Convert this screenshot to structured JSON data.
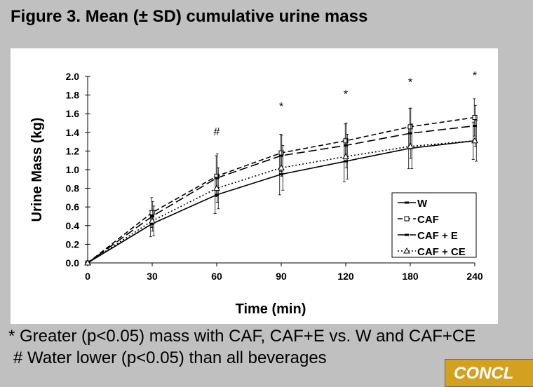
{
  "title": "Figure 3. Mean (± SD) cumulative urine mass",
  "footnotes": {
    "line1": "* Greater (p<0.05) mass with CAF, CAF+E vs. W and CAF+CE",
    "line2": "#  Water lower (p<0.05) than all beverages"
  },
  "conc_tab_label": "CONCL",
  "chart_data": {
    "type": "line",
    "title": "",
    "xlabel": "Time (min)",
    "ylabel": "Urine Mass (kg)",
    "ylim": [
      0,
      2.0
    ],
    "yticks": [
      "0.0",
      "0.2",
      "0.4",
      "0.6",
      "0.8",
      "1.0",
      "1.2",
      "1.4",
      "1.6",
      "1.8",
      "2.0"
    ],
    "ytick_values": [
      0,
      0.2,
      0.4,
      0.6,
      0.8,
      1.0,
      1.2,
      1.4,
      1.6,
      1.8,
      2.0
    ],
    "categories": [
      "0",
      "30",
      "60",
      "90",
      "120",
      "180",
      "240"
    ],
    "legend_position": "bottom-right",
    "series": [
      {
        "name": "W",
        "style": "solid",
        "marker": "dash",
        "values": [
          0,
          0.42,
          0.73,
          0.95,
          1.09,
          1.23,
          1.31
        ],
        "sd": [
          0,
          0.14,
          0.2,
          0.22,
          0.22,
          0.22,
          0.2
        ]
      },
      {
        "name": "CAF",
        "style": "dash",
        "marker": "square",
        "values": [
          0,
          0.54,
          0.93,
          1.18,
          1.31,
          1.46,
          1.56
        ],
        "sd": [
          0,
          0.16,
          0.22,
          0.2,
          0.18,
          0.2,
          0.2
        ]
      },
      {
        "name": "CAF + E",
        "style": "longdash",
        "marker": "dash",
        "values": [
          0,
          0.5,
          0.91,
          1.15,
          1.26,
          1.39,
          1.47
        ],
        "sd": [
          0,
          0.16,
          0.26,
          0.22,
          0.24,
          0.27,
          0.22
        ]
      },
      {
        "name": "CAF + CE",
        "style": "dotted",
        "marker": "triangle",
        "values": [
          0,
          0.45,
          0.8,
          1.02,
          1.14,
          1.25,
          1.31
        ],
        "sd": [
          0,
          0.16,
          0.22,
          0.24,
          0.24,
          0.24,
          0.22
        ]
      }
    ],
    "annotations": [
      {
        "category": "60",
        "y": 1.43,
        "text": "#"
      },
      {
        "category": "90",
        "y": 1.7,
        "text": "*"
      },
      {
        "category": "120",
        "y": 1.83,
        "text": "*"
      },
      {
        "category": "180",
        "y": 1.96,
        "text": "*"
      },
      {
        "category": "240",
        "y": 2.03,
        "text": "*"
      }
    ]
  }
}
